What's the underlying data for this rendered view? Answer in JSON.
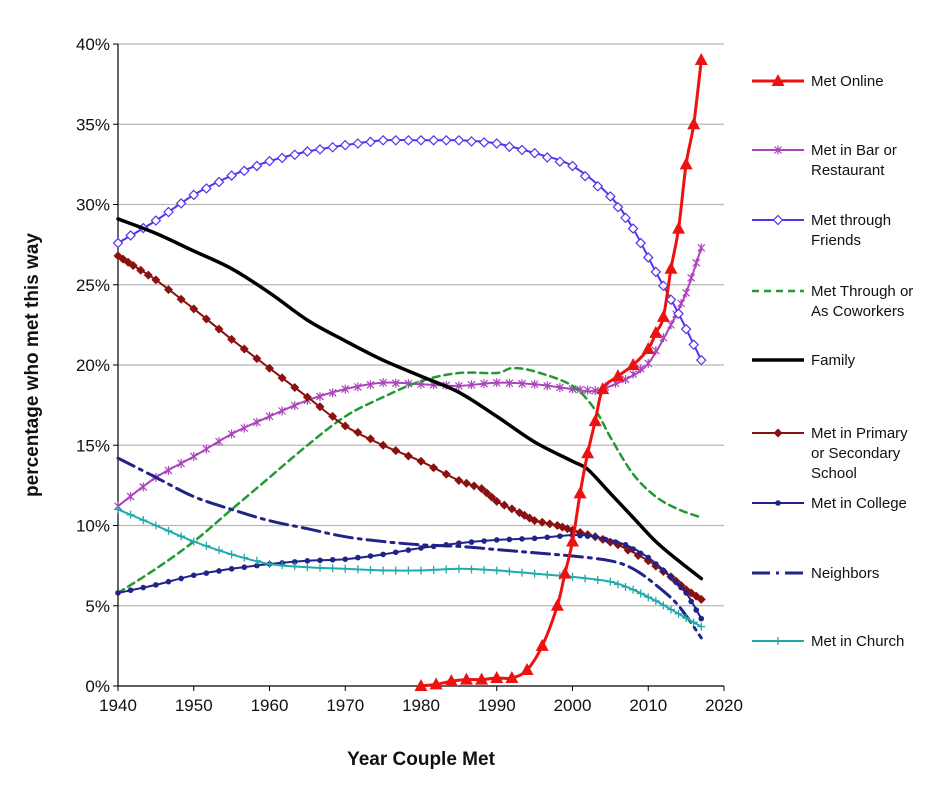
{
  "chart_data": {
    "type": "line",
    "title": "",
    "xlabel": "Year Couple Met",
    "ylabel": "percentage who met this way",
    "xlim": [
      1940,
      2020
    ],
    "ylim": [
      0,
      40
    ],
    "x_ticks": [
      "1940",
      "1950",
      "1960",
      "1970",
      "1980",
      "1990",
      "2000",
      "2010",
      "2020"
    ],
    "y_ticks": [
      "0%",
      "5%",
      "10%",
      "15%",
      "20%",
      "25%",
      "30%",
      "35%",
      "40%"
    ],
    "grid": "horizontal",
    "legend_position": "right",
    "series": [
      {
        "name": "Met Online",
        "color": "#ee1111",
        "style": "solid-thick",
        "marker": "triangle",
        "points": [
          [
            1980,
            0
          ],
          [
            1982,
            0.1
          ],
          [
            1984,
            0.3
          ],
          [
            1986,
            0.4
          ],
          [
            1988,
            0.4
          ],
          [
            1990,
            0.5
          ],
          [
            1992,
            0.5
          ],
          [
            1994,
            1.0
          ],
          [
            1996,
            2.5
          ],
          [
            1998,
            5.0
          ],
          [
            1999,
            7
          ],
          [
            2000,
            9
          ],
          [
            2001,
            12
          ],
          [
            2002,
            14.5
          ],
          [
            2003,
            16.5
          ],
          [
            2004,
            18.5
          ],
          [
            2006,
            19.3
          ],
          [
            2008,
            20.0
          ],
          [
            2010,
            21.0
          ],
          [
            2011,
            22.0
          ],
          [
            2012,
            23.0
          ],
          [
            2013,
            26.0
          ],
          [
            2014,
            28.5
          ],
          [
            2015,
            32.5
          ],
          [
            2016,
            35.0
          ],
          [
            2017,
            39.0
          ]
        ]
      },
      {
        "name": "Met in Bar or Restaurant",
        "color": "#aa44bb",
        "style": "solid",
        "marker": "star",
        "points": [
          [
            1940,
            11.2
          ],
          [
            1945,
            13.0
          ],
          [
            1950,
            14.3
          ],
          [
            1955,
            15.7
          ],
          [
            1960,
            16.8
          ],
          [
            1965,
            17.8
          ],
          [
            1970,
            18.5
          ],
          [
            1975,
            18.9
          ],
          [
            1980,
            18.8
          ],
          [
            1985,
            18.7
          ],
          [
            1990,
            18.9
          ],
          [
            1995,
            18.8
          ],
          [
            2000,
            18.5
          ],
          [
            2003,
            18.4
          ],
          [
            2007,
            19.1
          ],
          [
            2010,
            20.1
          ],
          [
            2013,
            22.5
          ],
          [
            2015,
            24.5
          ],
          [
            2017,
            27.3
          ]
        ]
      },
      {
        "name": "Met through Friends",
        "color": "#5533ee",
        "style": "solid",
        "marker": "diamond-open",
        "points": [
          [
            1940,
            27.6
          ],
          [
            1945,
            29.0
          ],
          [
            1950,
            30.6
          ],
          [
            1955,
            31.8
          ],
          [
            1960,
            32.7
          ],
          [
            1965,
            33.3
          ],
          [
            1970,
            33.7
          ],
          [
            1975,
            34.0
          ],
          [
            1980,
            34.0
          ],
          [
            1985,
            34.0
          ],
          [
            1990,
            33.8
          ],
          [
            1995,
            33.2
          ],
          [
            2000,
            32.4
          ],
          [
            2005,
            30.5
          ],
          [
            2008,
            28.5
          ],
          [
            2011,
            25.8
          ],
          [
            2014,
            23.2
          ],
          [
            2017,
            20.3
          ]
        ]
      },
      {
        "name": "Met Through or As Coworkers",
        "color": "#229933",
        "style": "dashed",
        "marker": "none",
        "points": [
          [
            1940,
            5.8
          ],
          [
            1945,
            7.3
          ],
          [
            1950,
            9.0
          ],
          [
            1955,
            11.0
          ],
          [
            1960,
            13.0
          ],
          [
            1965,
            15.0
          ],
          [
            1970,
            16.8
          ],
          [
            1975,
            18.0
          ],
          [
            1980,
            19.0
          ],
          [
            1985,
            19.5
          ],
          [
            1990,
            19.5
          ],
          [
            1992,
            19.8
          ],
          [
            1995,
            19.6
          ],
          [
            2000,
            18.7
          ],
          [
            2003,
            17.2
          ],
          [
            2005,
            15.5
          ],
          [
            2008,
            13.2
          ],
          [
            2011,
            11.8
          ],
          [
            2014,
            11.0
          ],
          [
            2017,
            10.5
          ]
        ]
      },
      {
        "name": "Family",
        "color": "#000000",
        "style": "solid-thick",
        "marker": "none",
        "points": [
          [
            1940,
            29.1
          ],
          [
            1945,
            28.2
          ],
          [
            1950,
            27.1
          ],
          [
            1955,
            26.0
          ],
          [
            1960,
            24.5
          ],
          [
            1965,
            22.8
          ],
          [
            1970,
            21.5
          ],
          [
            1975,
            20.3
          ],
          [
            1980,
            19.3
          ],
          [
            1985,
            18.3
          ],
          [
            1990,
            16.8
          ],
          [
            1995,
            15.2
          ],
          [
            2000,
            14.0
          ],
          [
            2002,
            13.5
          ],
          [
            2005,
            12.0
          ],
          [
            2008,
            10.5
          ],
          [
            2011,
            9.0
          ],
          [
            2014,
            7.8
          ],
          [
            2017,
            6.7
          ]
        ]
      },
      {
        "name": "Met in Primary or Secondary School",
        "color": "#8b1010",
        "style": "solid",
        "marker": "diamond",
        "points": [
          [
            1940,
            26.8
          ],
          [
            1942,
            26.2
          ],
          [
            1945,
            25.3
          ],
          [
            1950,
            23.5
          ],
          [
            1955,
            21.6
          ],
          [
            1960,
            19.8
          ],
          [
            1965,
            18.0
          ],
          [
            1970,
            16.2
          ],
          [
            1975,
            15.0
          ],
          [
            1980,
            14.0
          ],
          [
            1985,
            12.8
          ],
          [
            1988,
            12.3
          ],
          [
            1990,
            11.5
          ],
          [
            1993,
            10.8
          ],
          [
            1995,
            10.3
          ],
          [
            1998,
            10.0
          ],
          [
            2000,
            9.7
          ],
          [
            2003,
            9.3
          ],
          [
            2006,
            8.8
          ],
          [
            2010,
            7.8
          ],
          [
            2013,
            6.8
          ],
          [
            2015,
            6.0
          ],
          [
            2017,
            5.4
          ]
        ]
      },
      {
        "name": "Met in College",
        "color": "#222288",
        "style": "solid",
        "marker": "dot",
        "points": [
          [
            1940,
            5.8
          ],
          [
            1945,
            6.3
          ],
          [
            1950,
            6.9
          ],
          [
            1955,
            7.3
          ],
          [
            1960,
            7.6
          ],
          [
            1965,
            7.8
          ],
          [
            1970,
            7.9
          ],
          [
            1975,
            8.2
          ],
          [
            1980,
            8.6
          ],
          [
            1985,
            8.9
          ],
          [
            1990,
            9.1
          ],
          [
            1995,
            9.2
          ],
          [
            2000,
            9.4
          ],
          [
            2003,
            9.3
          ],
          [
            2007,
            8.8
          ],
          [
            2010,
            8.0
          ],
          [
            2013,
            6.8
          ],
          [
            2015,
            5.8
          ],
          [
            2017,
            4.2
          ]
        ]
      },
      {
        "name": "Neighbors",
        "color": "#222288",
        "style": "dashdot",
        "marker": "none",
        "points": [
          [
            1940,
            14.2
          ],
          [
            1945,
            13.0
          ],
          [
            1950,
            11.8
          ],
          [
            1955,
            11.0
          ],
          [
            1960,
            10.3
          ],
          [
            1965,
            9.8
          ],
          [
            1970,
            9.3
          ],
          [
            1975,
            9.0
          ],
          [
            1980,
            8.8
          ],
          [
            1985,
            8.7
          ],
          [
            1990,
            8.5
          ],
          [
            1995,
            8.3
          ],
          [
            2000,
            8.1
          ],
          [
            2005,
            7.8
          ],
          [
            2008,
            7.3
          ],
          [
            2011,
            6.3
          ],
          [
            2014,
            5.0
          ],
          [
            2017,
            3.0
          ]
        ]
      },
      {
        "name": "Met in Church",
        "color": "#22aaaa",
        "style": "solid",
        "marker": "plus",
        "points": [
          [
            1940,
            11.0
          ],
          [
            1945,
            10.0
          ],
          [
            1950,
            9.0
          ],
          [
            1955,
            8.2
          ],
          [
            1960,
            7.6
          ],
          [
            1965,
            7.4
          ],
          [
            1970,
            7.3
          ],
          [
            1975,
            7.2
          ],
          [
            1980,
            7.2
          ],
          [
            1985,
            7.3
          ],
          [
            1990,
            7.2
          ],
          [
            1995,
            7.0
          ],
          [
            2000,
            6.8
          ],
          [
            2005,
            6.5
          ],
          [
            2008,
            6.0
          ],
          [
            2011,
            5.3
          ],
          [
            2014,
            4.5
          ],
          [
            2017,
            3.7
          ]
        ]
      }
    ]
  }
}
